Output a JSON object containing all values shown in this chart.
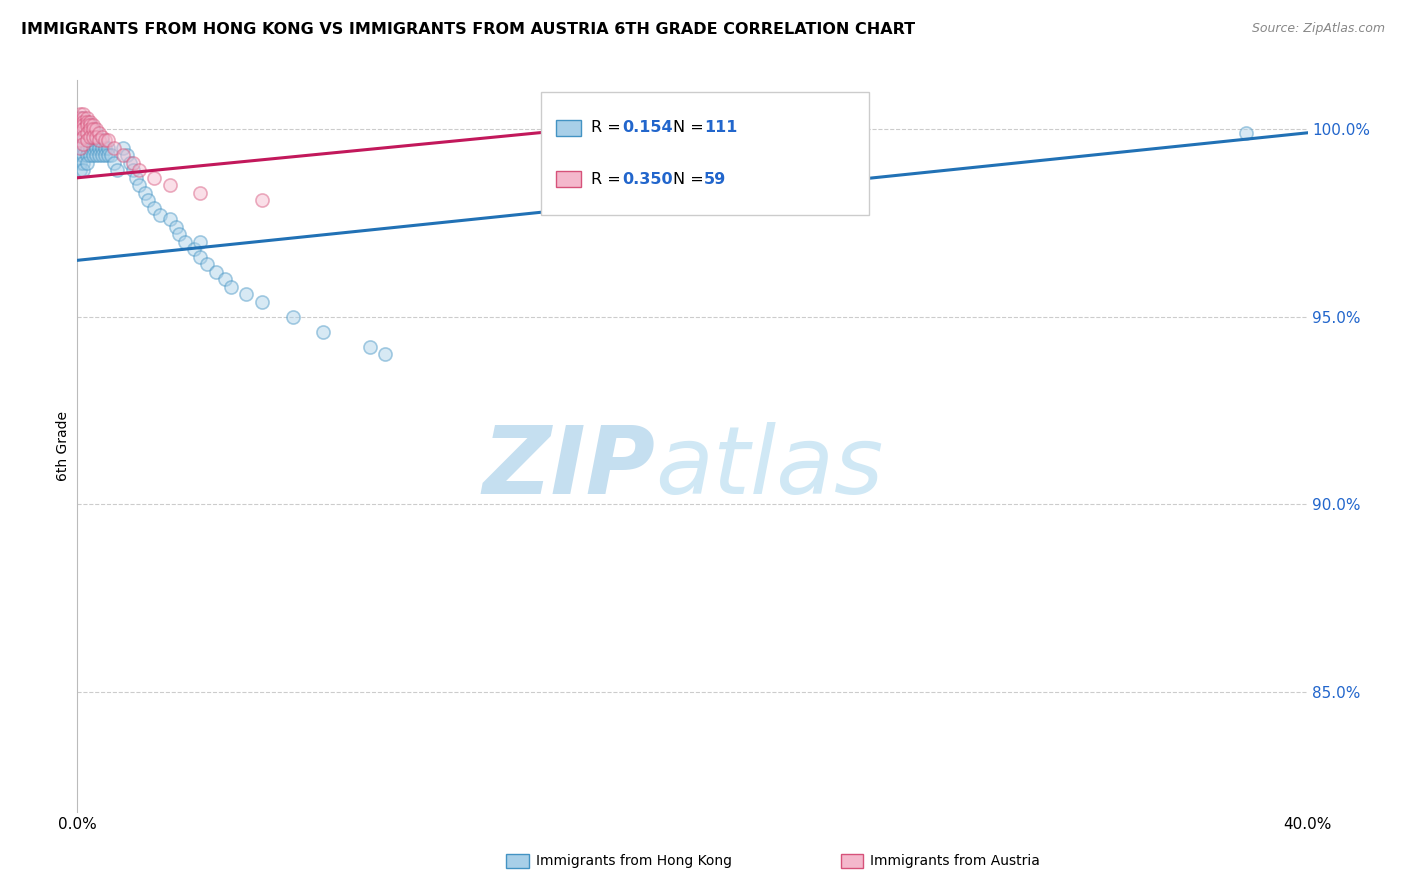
{
  "title": "IMMIGRANTS FROM HONG KONG VS IMMIGRANTS FROM AUSTRIA 6TH GRADE CORRELATION CHART",
  "source": "Source: ZipAtlas.com",
  "ylabel": "6th Grade",
  "legend_blue_label": "Immigrants from Hong Kong",
  "legend_pink_label": "Immigrants from Austria",
  "legend_blue_R": "0.154",
  "legend_blue_N": "111",
  "legend_pink_R": "0.350",
  "legend_pink_N": "59",
  "blue_color": "#a8cfe8",
  "pink_color": "#f4b8cc",
  "blue_edge_color": "#4393c3",
  "pink_edge_color": "#d6527a",
  "blue_line_color": "#2171b5",
  "pink_line_color": "#c2185b",
  "legend_r_color": "#2266cc",
  "background_color": "#ffffff",
  "watermark_zip_color": "#c5dff0",
  "watermark_atlas_color": "#d0e8f5",
  "grid_color": "#cccccc",
  "xmin": 0.0,
  "xmax": 0.4,
  "ymin": 0.818,
  "ymax": 1.013,
  "yaxis_ticks": [
    "85.0%",
    "90.0%",
    "95.0%",
    "100.0%"
  ],
  "yaxis_values": [
    0.85,
    0.9,
    0.95,
    1.0
  ],
  "blue_trend_x": [
    0.0,
    0.4
  ],
  "blue_trend_y": [
    0.965,
    0.999
  ],
  "pink_trend_x": [
    0.0,
    0.25
  ],
  "pink_trend_y": [
    0.987,
    1.007
  ],
  "dot_size": 90,
  "dot_alpha": 0.45,
  "dot_linewidth": 1.2,
  "blue_dots_x": [
    0.001,
    0.001,
    0.001,
    0.001,
    0.001,
    0.001,
    0.001,
    0.001,
    0.001,
    0.001,
    0.001,
    0.002,
    0.002,
    0.002,
    0.002,
    0.002,
    0.002,
    0.002,
    0.002,
    0.002,
    0.002,
    0.003,
    0.003,
    0.003,
    0.003,
    0.003,
    0.003,
    0.003,
    0.003,
    0.004,
    0.004,
    0.004,
    0.004,
    0.004,
    0.004,
    0.005,
    0.005,
    0.005,
    0.005,
    0.005,
    0.006,
    0.006,
    0.006,
    0.006,
    0.007,
    0.007,
    0.007,
    0.008,
    0.008,
    0.008,
    0.009,
    0.009,
    0.01,
    0.01,
    0.011,
    0.012,
    0.013,
    0.015,
    0.016,
    0.017,
    0.018,
    0.019,
    0.02,
    0.022,
    0.023,
    0.025,
    0.027,
    0.03,
    0.032,
    0.033,
    0.035,
    0.038,
    0.04,
    0.042,
    0.045,
    0.048,
    0.05,
    0.055,
    0.06,
    0.07,
    0.08,
    0.095,
    0.1,
    0.04,
    0.38
  ],
  "blue_dots_y": [
    1.003,
    1.002,
    1.001,
    1.0,
    0.999,
    0.998,
    0.997,
    0.995,
    0.993,
    0.991,
    0.989,
    1.003,
    1.002,
    1.001,
    1.0,
    0.999,
    0.997,
    0.995,
    0.993,
    0.991,
    0.989,
    1.002,
    1.001,
    1.0,
    0.999,
    0.997,
    0.995,
    0.993,
    0.991,
    1.001,
    1.0,
    0.999,
    0.997,
    0.995,
    0.993,
    1.0,
    0.999,
    0.997,
    0.995,
    0.993,
    0.999,
    0.997,
    0.995,
    0.993,
    0.997,
    0.995,
    0.993,
    0.997,
    0.995,
    0.993,
    0.995,
    0.993,
    0.995,
    0.993,
    0.993,
    0.991,
    0.989,
    0.995,
    0.993,
    0.991,
    0.989,
    0.987,
    0.985,
    0.983,
    0.981,
    0.979,
    0.977,
    0.976,
    0.974,
    0.972,
    0.97,
    0.968,
    0.966,
    0.964,
    0.962,
    0.96,
    0.958,
    0.956,
    0.954,
    0.95,
    0.946,
    0.942,
    0.94,
    0.97,
    0.999
  ],
  "pink_dots_x": [
    0.001,
    0.001,
    0.001,
    0.001,
    0.001,
    0.001,
    0.001,
    0.001,
    0.002,
    0.002,
    0.002,
    0.002,
    0.002,
    0.002,
    0.002,
    0.003,
    0.003,
    0.003,
    0.003,
    0.003,
    0.004,
    0.004,
    0.004,
    0.004,
    0.005,
    0.005,
    0.005,
    0.006,
    0.006,
    0.007,
    0.007,
    0.008,
    0.009,
    0.01,
    0.012,
    0.015,
    0.018,
    0.02,
    0.025,
    0.03,
    0.04,
    0.06,
    0.18,
    0.23,
    0.25
  ],
  "pink_dots_y": [
    1.004,
    1.003,
    1.002,
    1.001,
    1.0,
    0.999,
    0.997,
    0.995,
    1.004,
    1.003,
    1.002,
    1.001,
    1.0,
    0.998,
    0.996,
    1.003,
    1.002,
    1.001,
    0.999,
    0.997,
    1.002,
    1.001,
    1.0,
    0.998,
    1.001,
    1.0,
    0.998,
    1.0,
    0.998,
    0.999,
    0.997,
    0.998,
    0.997,
    0.997,
    0.995,
    0.993,
    0.991,
    0.989,
    0.987,
    0.985,
    0.983,
    0.981,
    1.002,
    1.003,
    1.004
  ]
}
